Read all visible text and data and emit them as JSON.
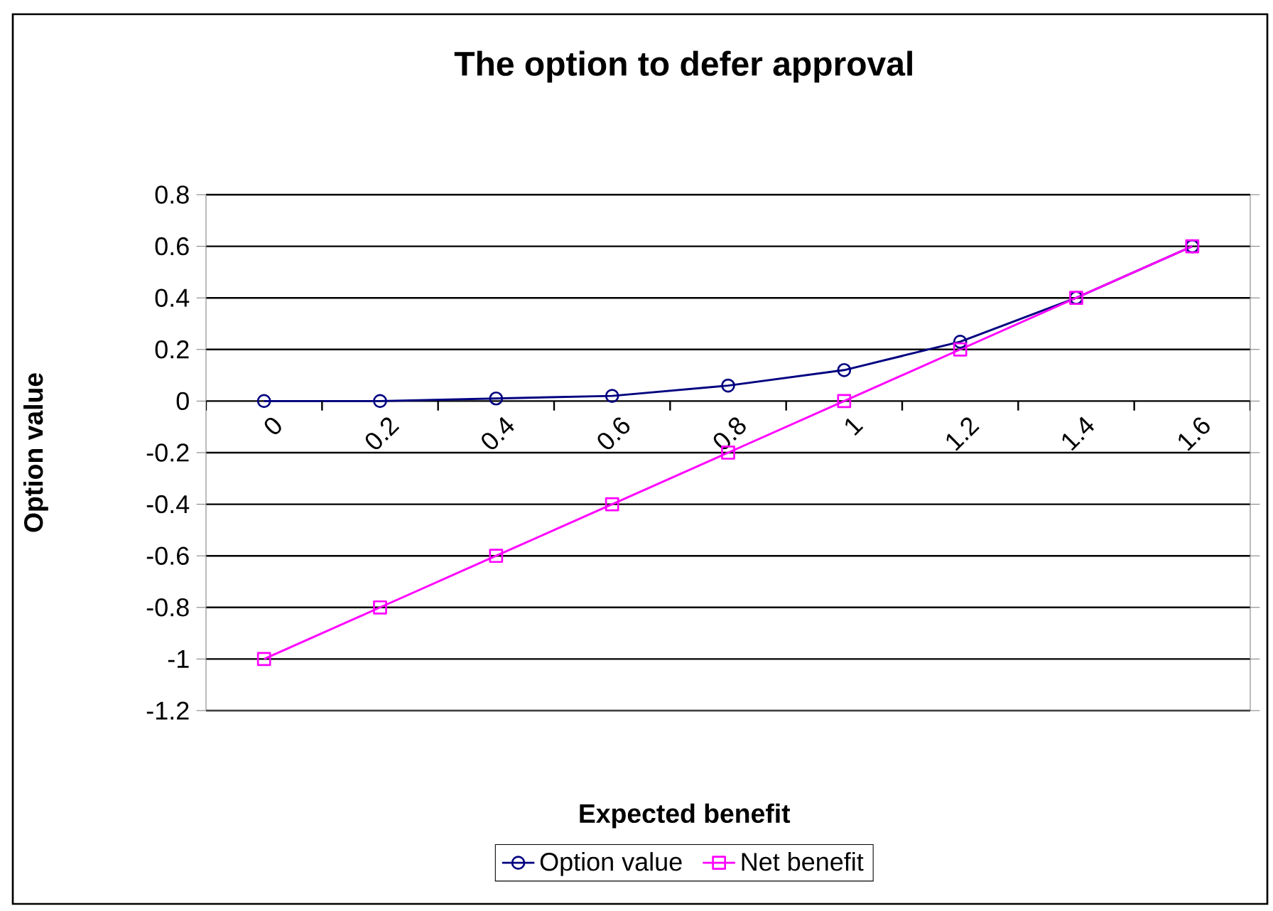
{
  "chart_data": {
    "type": "line",
    "title": "The option to defer approval",
    "xlabel": "Expected benefit",
    "ylabel": "Option value",
    "categories": [
      "0",
      "0.2",
      "0.4",
      "0.6",
      "0.8",
      "1",
      "1.2",
      "1.4",
      "1.6"
    ],
    "series": [
      {
        "name": "Option value",
        "color": "#000080",
        "marker": "circle",
        "values": [
          0,
          0,
          0.01,
          0.02,
          0.06,
          0.12,
          0.23,
          0.4,
          0.6
        ]
      },
      {
        "name": "Net benefit",
        "color": "#ff00ff",
        "marker": "square",
        "values": [
          -1,
          -0.8,
          -0.6,
          -0.4,
          -0.2,
          0,
          0.2,
          0.4,
          0.6
        ]
      }
    ],
    "ylim": [
      -1.2,
      0.8
    ],
    "yticks": [
      -1.2,
      -1,
      -0.8,
      -0.6,
      -0.4,
      -0.2,
      0,
      0.2,
      0.4,
      0.6,
      0.8
    ],
    "grid": "y",
    "legend": "bottom"
  }
}
